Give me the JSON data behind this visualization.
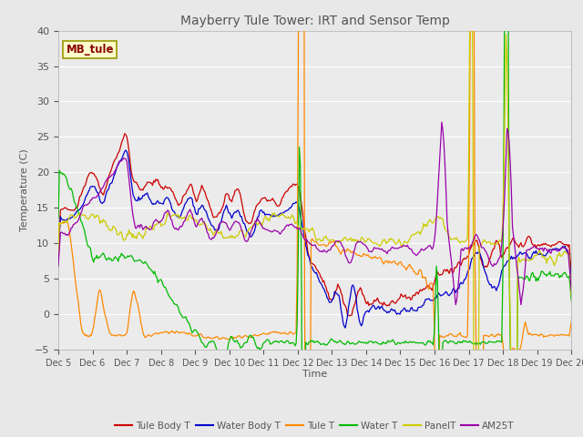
{
  "title": "Mayberry Tule Tower: IRT and Sensor Temp",
  "ylabel": "Temperature (C)",
  "xlabel": "Time",
  "annotation": "MB_tule",
  "ylim": [
    -5,
    40
  ],
  "yticks": [
    -5,
    0,
    5,
    10,
    15,
    20,
    25,
    30,
    35,
    40
  ],
  "xtick_labels": [
    "Dec 5",
    "Dec 6",
    "Dec 7",
    "Dec 8",
    "Dec 9",
    "Dec 10",
    "Dec 11",
    "Dec 12",
    "Dec 13",
    "Dec 14",
    "Dec 15",
    "Dec 16",
    "Dec 17",
    "Dec 18",
    "Dec 19",
    "Dec 20"
  ],
  "colors": {
    "Tule Body T": "#cc0000",
    "Water Body T": "#0000cc",
    "Tule T": "#ff8800",
    "Water T": "#00bb00",
    "PanelT": "#cccc00",
    "AM25T": "#9900aa"
  },
  "title_color": "#555555",
  "tick_color": "#555555",
  "label_color": "#555555",
  "bg_outer": "#e8e8e8",
  "bg_inner": "#ebebeb",
  "grid_color": "#ffffff",
  "annotation_fg": "#880000",
  "annotation_bg": "#ffffcc",
  "annotation_border": "#999900"
}
